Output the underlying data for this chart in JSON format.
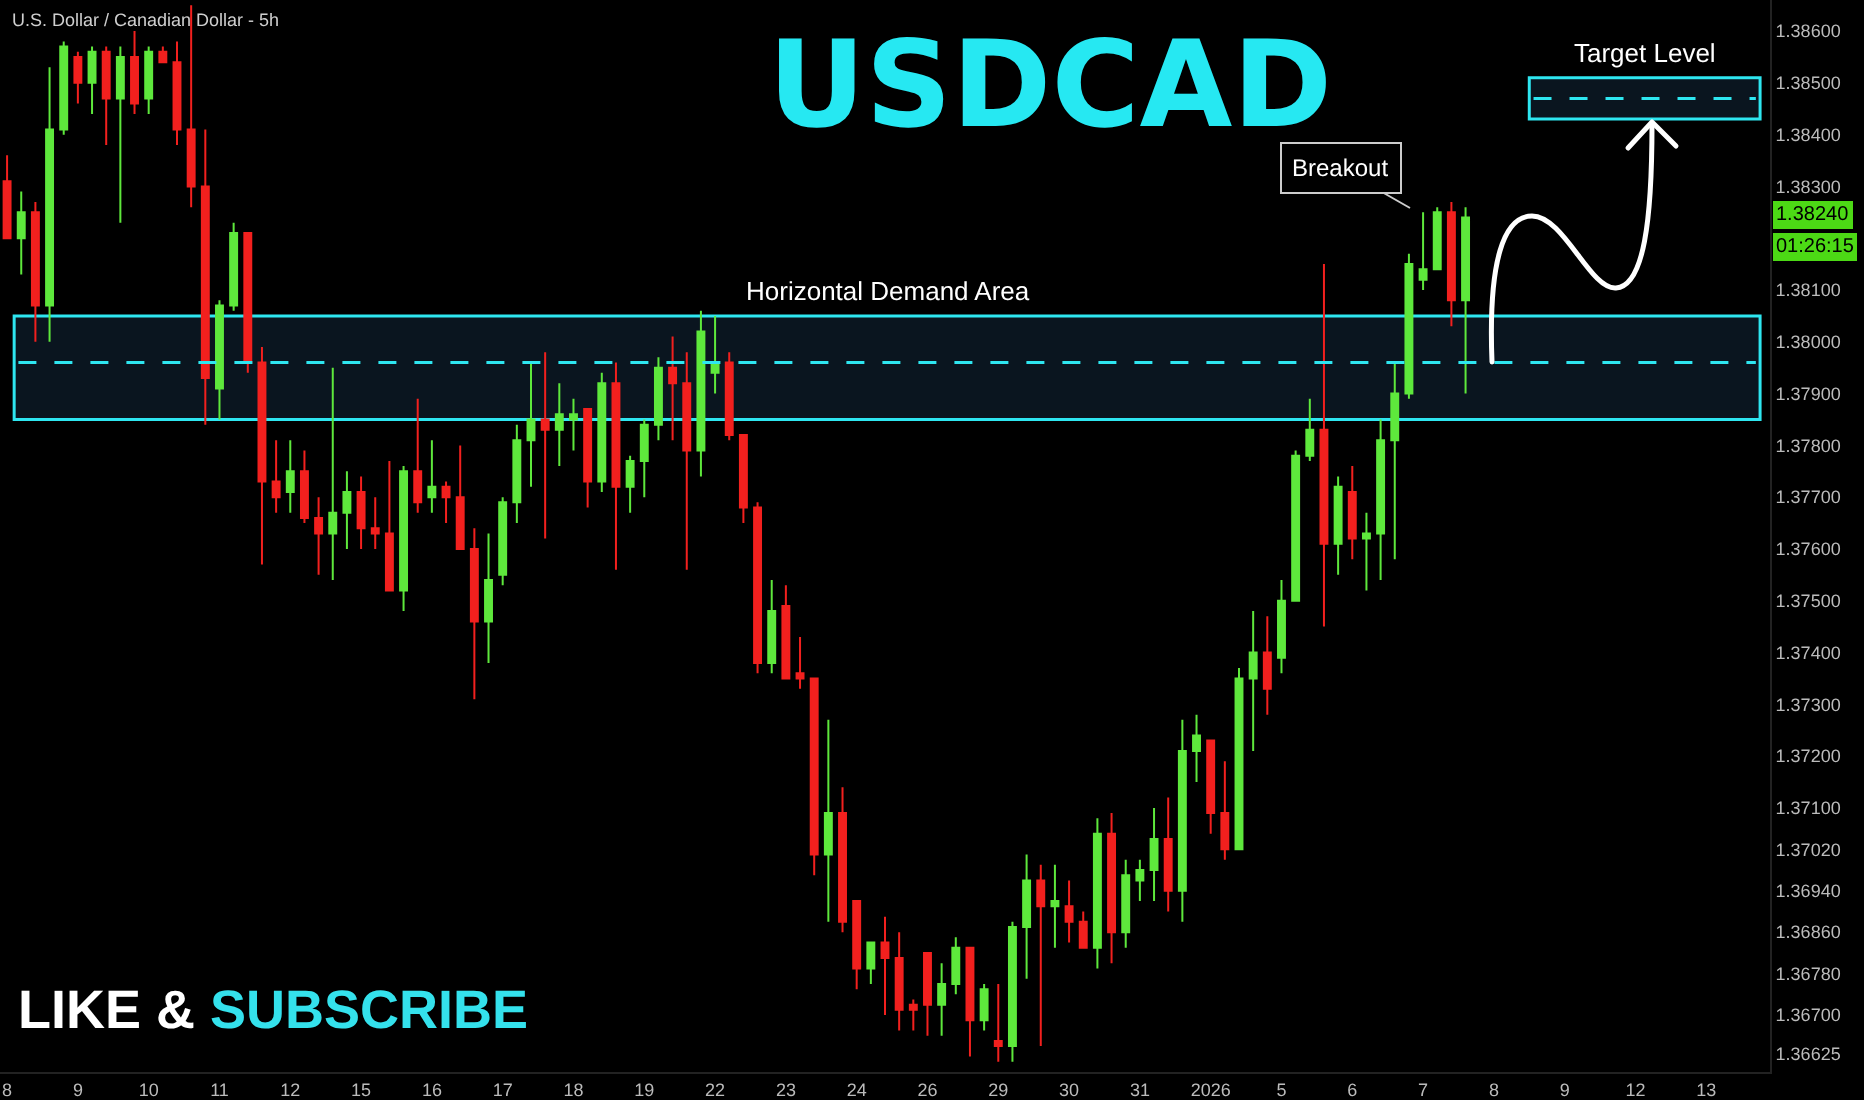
{
  "chart_data": {
    "type": "candlestick",
    "title": "USDCAD",
    "subtitle": "U.S. Dollar / Canadian Dollar - 5h",
    "categories": [
      "8",
      null,
      null,
      null,
      null,
      "9",
      null,
      null,
      null,
      null,
      "10",
      null,
      null,
      null,
      null,
      "11",
      null,
      null,
      null,
      null,
      "12",
      null,
      null,
      null,
      null,
      "15",
      null,
      null,
      null,
      null,
      "16",
      null,
      null,
      null,
      null,
      "17",
      null,
      null,
      null,
      null,
      "18",
      null,
      null,
      null,
      null,
      "19",
      null,
      null,
      null,
      null,
      "22",
      null,
      null,
      null,
      null,
      "23",
      null,
      null,
      null,
      null,
      "24",
      null,
      null,
      null,
      null,
      "26",
      null,
      null,
      null,
      null,
      "29",
      null,
      null,
      null,
      null,
      "30",
      null,
      null,
      null,
      null,
      "31",
      null,
      null,
      null,
      null,
      "2026",
      null,
      null,
      null,
      null,
      "5",
      null,
      null,
      null,
      null,
      "6",
      null,
      null,
      null,
      null,
      "7",
      null,
      null,
      null,
      null,
      "8",
      null,
      null,
      null,
      null,
      "9",
      null,
      null,
      null,
      null,
      "12",
      null,
      null,
      null,
      null,
      "13",
      null,
      null,
      null,
      null
    ],
    "ohlc": [
      [
        1.3831,
        1.3836,
        1.382,
        1.382
      ],
      [
        1.382,
        1.3829,
        1.3813,
        1.3825
      ],
      [
        1.3825,
        1.3827,
        1.38,
        1.3807
      ],
      [
        1.3807,
        1.3853,
        1.38,
        1.3841
      ],
      [
        1.3841,
        1.3858,
        1.384,
        1.3857
      ],
      [
        1.3855,
        1.3856,
        1.3846,
        1.385
      ],
      [
        1.385,
        1.3857,
        1.3844,
        1.3856
      ],
      [
        1.3856,
        1.3857,
        1.3838,
        1.3847
      ],
      [
        1.3847,
        1.3857,
        1.3823,
        1.3855
      ],
      [
        1.3855,
        1.386,
        1.3844,
        1.3846
      ],
      [
        1.3847,
        1.3857,
        1.3844,
        1.3856
      ],
      [
        1.3856,
        1.3857,
        1.3854,
        1.3854
      ],
      [
        1.3854,
        1.3858,
        1.3838,
        1.3841
      ],
      [
        1.3841,
        1.3865,
        1.3826,
        1.383
      ],
      [
        1.383,
        1.3841,
        1.3784,
        1.3793
      ],
      [
        1.3791,
        1.3808,
        1.3785,
        1.3807
      ],
      [
        1.3807,
        1.3823,
        1.3806,
        1.3821
      ],
      [
        1.3821,
        1.3821,
        1.3794,
        1.3796
      ],
      [
        1.3796,
        1.3799,
        1.3757,
        1.3773
      ],
      [
        1.3773,
        1.3781,
        1.3767,
        1.377
      ],
      [
        1.3771,
        1.3781,
        1.3767,
        1.3775
      ],
      [
        1.3775,
        1.3779,
        1.3765,
        1.3766
      ],
      [
        1.3766,
        1.377,
        1.3755,
        1.3763
      ],
      [
        1.3763,
        1.3795,
        1.3754,
        1.3767
      ],
      [
        1.3767,
        1.3775,
        1.376,
        1.3771
      ],
      [
        1.3771,
        1.3774,
        1.376,
        1.3764
      ],
      [
        1.3764,
        1.377,
        1.376,
        1.3763
      ],
      [
        1.3763,
        1.3777,
        1.3752,
        1.3752
      ],
      [
        1.3752,
        1.3776,
        1.3748,
        1.3775
      ],
      [
        1.3775,
        1.3789,
        1.3767,
        1.3769
      ],
      [
        1.377,
        1.3781,
        1.3767,
        1.3772
      ],
      [
        1.3772,
        1.3773,
        1.3765,
        1.377
      ],
      [
        1.377,
        1.378,
        1.376,
        1.376
      ],
      [
        1.376,
        1.3764,
        1.3731,
        1.3746
      ],
      [
        1.3746,
        1.3763,
        1.3738,
        1.3754
      ],
      [
        1.3755,
        1.377,
        1.3753,
        1.3769
      ],
      [
        1.3769,
        1.3784,
        1.3765,
        1.3781
      ],
      [
        1.3781,
        1.3796,
        1.3772,
        1.3785
      ],
      [
        1.3785,
        1.3798,
        1.3762,
        1.3783
      ],
      [
        1.3783,
        1.3792,
        1.3776,
        1.3786
      ],
      [
        1.3785,
        1.3789,
        1.3779,
        1.3786
      ],
      [
        1.3787,
        1.3787,
        1.3768,
        1.3773
      ],
      [
        1.3773,
        1.3794,
        1.3771,
        1.3792
      ],
      [
        1.3792,
        1.3796,
        1.3756,
        1.3772
      ],
      [
        1.3772,
        1.3778,
        1.3767,
        1.3777
      ],
      [
        1.3777,
        1.3785,
        1.377,
        1.3784
      ],
      [
        1.3784,
        1.3797,
        1.3781,
        1.3795
      ],
      [
        1.3795,
        1.3801,
        1.3781,
        1.3792
      ],
      [
        1.3792,
        1.3798,
        1.3756,
        1.3779
      ],
      [
        1.3779,
        1.3806,
        1.3774,
        1.3802
      ],
      [
        1.3794,
        1.3805,
        1.379,
        1.3796
      ],
      [
        1.3796,
        1.3798,
        1.3781,
        1.3782
      ],
      [
        1.3782,
        1.3782,
        1.3765,
        1.3768
      ],
      [
        1.3768,
        1.3769,
        1.3736,
        1.3738
      ],
      [
        1.3738,
        1.3754,
        1.3736,
        1.3748
      ],
      [
        1.3749,
        1.3753,
        1.3735,
        1.3735
      ],
      [
        1.3736,
        1.3743,
        1.3733,
        1.3735
      ],
      [
        1.3735,
        1.3735,
        1.3697,
        1.3701
      ],
      [
        1.3701,
        1.3727,
        1.3688,
        1.3709
      ],
      [
        1.3709,
        1.3714,
        1.3686,
        1.3688
      ],
      [
        1.3692,
        1.3692,
        1.3675,
        1.3679
      ],
      [
        1.3679,
        1.3684,
        1.3676,
        1.3684
      ],
      [
        1.3684,
        1.3689,
        1.367,
        1.3681
      ],
      [
        1.3681,
        1.3686,
        1.3667,
        1.3671
      ],
      [
        1.3672,
        1.3673,
        1.3667,
        1.3671
      ],
      [
        1.3682,
        1.3682,
        1.3666,
        1.3672
      ],
      [
        1.3672,
        1.368,
        1.3666,
        1.3676
      ],
      [
        1.3676,
        1.3685,
        1.3674,
        1.3683
      ],
      [
        1.3683,
        1.3683,
        1.3662,
        1.3669
      ],
      [
        1.3669,
        1.3676,
        1.3667,
        1.3675
      ],
      [
        1.3665,
        1.3676,
        1.3661,
        1.3664
      ],
      [
        1.3664,
        1.3688,
        1.3661,
        1.3687
      ],
      [
        1.3687,
        1.3701,
        1.3677,
        1.3696
      ],
      [
        1.3696,
        1.3699,
        1.3664,
        1.3691
      ],
      [
        1.3691,
        1.3699,
        1.3683,
        1.3692
      ],
      [
        1.3691,
        1.3696,
        1.3684,
        1.3688
      ],
      [
        1.3688,
        1.369,
        1.3683,
        1.3683
      ],
      [
        1.3683,
        1.3708,
        1.3679,
        1.3705
      ],
      [
        1.3705,
        1.3709,
        1.368,
        1.3686
      ],
      [
        1.3686,
        1.37,
        1.3683,
        1.3697
      ],
      [
        1.3696,
        1.37,
        1.3692,
        1.3698
      ],
      [
        1.3698,
        1.371,
        1.3692,
        1.3704
      ],
      [
        1.3704,
        1.3712,
        1.369,
        1.3694
      ],
      [
        1.3694,
        1.3727,
        1.3688,
        1.3721
      ],
      [
        1.3721,
        1.3728,
        1.3715,
        1.3724
      ],
      [
        1.3723,
        1.3723,
        1.3705,
        1.3709
      ],
      [
        1.3709,
        1.3719,
        1.37,
        1.3702
      ],
      [
        1.3702,
        1.3737,
        1.3702,
        1.3735
      ],
      [
        1.3735,
        1.3748,
        1.3721,
        1.374
      ],
      [
        1.374,
        1.3747,
        1.3728,
        1.3733
      ],
      [
        1.3739,
        1.3754,
        1.3736,
        1.375
      ],
      [
        1.375,
        1.3779,
        1.375,
        1.3778
      ],
      [
        1.3778,
        1.3789,
        1.3777,
        1.3783
      ],
      [
        1.3783,
        1.3815,
        1.3745,
        1.3761
      ],
      [
        1.3761,
        1.3774,
        1.3755,
        1.3772
      ],
      [
        1.3771,
        1.3776,
        1.3758,
        1.3762
      ],
      [
        1.3762,
        1.3767,
        1.3752,
        1.3763
      ],
      [
        1.3763,
        1.3785,
        1.3754,
        1.3781
      ],
      [
        1.3781,
        1.3796,
        1.3758,
        1.379
      ],
      [
        1.379,
        1.3817,
        1.3789,
        1.3815
      ],
      [
        1.3812,
        1.3825,
        1.381,
        1.3814
      ],
      [
        1.3814,
        1.3826,
        1.3814,
        1.3825
      ],
      [
        1.3825,
        1.3827,
        1.3803,
        1.3808
      ],
      [
        1.3808,
        1.3826,
        1.379,
        1.3824
      ],
      null,
      null,
      null,
      null,
      null,
      null,
      null,
      null,
      null,
      null,
      null,
      null,
      null,
      null,
      null,
      null,
      null,
      null,
      null,
      null,
      null
    ],
    "ylim": [
      1.3659,
      1.3866
    ],
    "yticks": [
      {
        "value": 1.386,
        "label": "1.38600"
      },
      {
        "value": 1.385,
        "label": "1.38500"
      },
      {
        "value": 1.384,
        "label": "1.38400"
      },
      {
        "value": 1.383,
        "label": "1.38300"
      },
      {
        "value": 1.381,
        "label": "1.38100"
      },
      {
        "value": 1.38,
        "label": "1.38000"
      },
      {
        "value": 1.379,
        "label": "1.37900"
      },
      {
        "value": 1.378,
        "label": "1.37800"
      },
      {
        "value": 1.377,
        "label": "1.37700"
      },
      {
        "value": 1.376,
        "label": "1.37600"
      },
      {
        "value": 1.375,
        "label": "1.37500"
      },
      {
        "value": 1.374,
        "label": "1.37400"
      },
      {
        "value": 1.373,
        "label": "1.37300"
      },
      {
        "value": 1.372,
        "label": "1.37200"
      },
      {
        "value": 1.371,
        "label": "1.37100"
      },
      {
        "value": 1.3702,
        "label": "1.37020"
      },
      {
        "value": 1.3694,
        "label": "1.36940"
      },
      {
        "value": 1.3686,
        "label": "1.36860"
      },
      {
        "value": 1.3678,
        "label": "1.36780"
      },
      {
        "value": 1.367,
        "label": "1.36700"
      },
      {
        "value": 1.36625,
        "label": "1.36625"
      }
    ],
    "bands": [
      {
        "axis": "y",
        "from": 1.3785,
        "to": 1.3805,
        "label": "Horizontal Demand Area",
        "color": "#2ee6f0"
      },
      {
        "axis": "y",
        "from": 1.3843,
        "to": 1.3851,
        "label": "Target Level",
        "color": "#2ee6f0"
      }
    ],
    "ref_lines": [
      {
        "axis": "y",
        "value": 1.3796,
        "color": "#2ee6f0",
        "line_style": "dashed"
      },
      {
        "axis": "y",
        "value": 1.3847,
        "color": "#2ee6f0",
        "line_style": "dashed"
      }
    ],
    "annotations": [
      "Breakout",
      "1.38240",
      "01:26:15",
      "LIKE & SUBSCRIBE"
    ],
    "grid": false,
    "legend": false
  }
}
